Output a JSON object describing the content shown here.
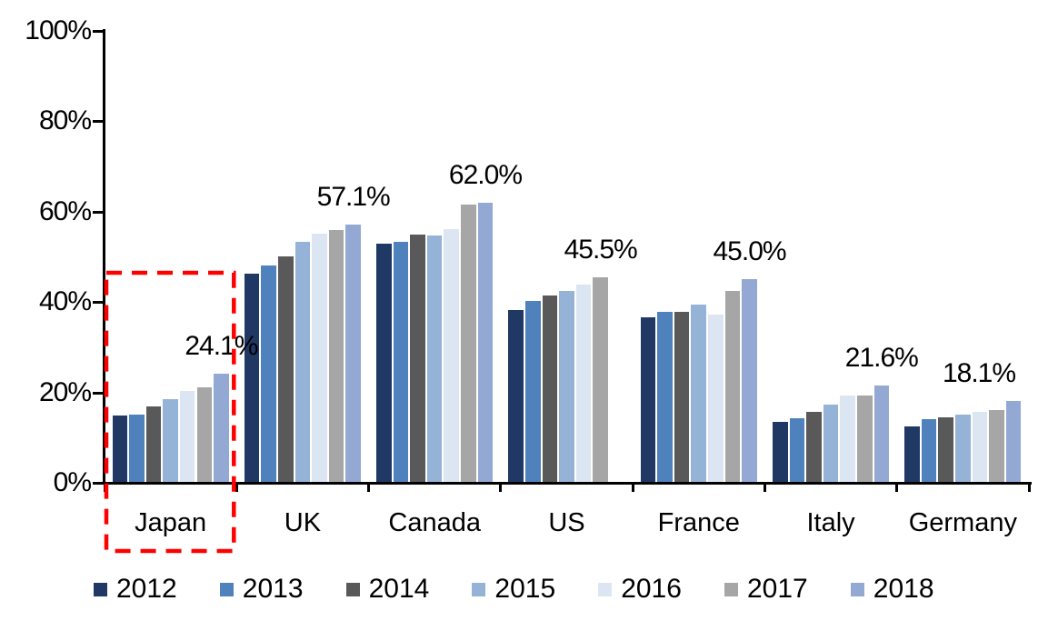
{
  "chart_data": {
    "type": "bar",
    "title": "",
    "xlabel": "",
    "ylabel": "",
    "ylim": [
      0,
      100
    ],
    "y_ticks": [
      "0%",
      "20%",
      "40%",
      "60%",
      "80%",
      "100%"
    ],
    "grid": false,
    "legend_position": "bottom",
    "categories": [
      "Japan",
      "UK",
      "Canada",
      "US",
      "France",
      "Italy",
      "Germany"
    ],
    "series": [
      {
        "name": "2012",
        "color": "#1F3864",
        "values": [
          14.9,
          46.3,
          53.0,
          38.3,
          36.6,
          13.5,
          12.5
        ]
      },
      {
        "name": "2013",
        "color": "#4F81BD",
        "values": [
          15.0,
          48.0,
          53.4,
          40.2,
          37.9,
          14.2,
          14.0
        ]
      },
      {
        "name": "2014",
        "color": "#595959",
        "values": [
          16.9,
          50.1,
          54.9,
          41.4,
          37.8,
          15.6,
          14.5
        ]
      },
      {
        "name": "2015",
        "color": "#95B3D7",
        "values": [
          18.5,
          53.4,
          54.7,
          42.5,
          39.4,
          17.3,
          15.1
        ]
      },
      {
        "name": "2016",
        "color": "#DCE6F2",
        "values": [
          20.3,
          55.1,
          56.2,
          43.8,
          37.3,
          19.3,
          15.6
        ]
      },
      {
        "name": "2017",
        "color": "#A6A6A6",
        "values": [
          21.2,
          55.9,
          61.6,
          45.5,
          42.4,
          19.4,
          16.0
        ]
      },
      {
        "name": "2018",
        "color": "#93A9D4",
        "values": [
          24.1,
          57.1,
          62.0,
          null,
          45.0,
          21.6,
          18.1
        ]
      }
    ],
    "data_labels": [
      {
        "category": "Japan",
        "text": "24.1%"
      },
      {
        "category": "UK",
        "text": "57.1%"
      },
      {
        "category": "Canada",
        "text": "62.0%"
      },
      {
        "category": "US",
        "text": "45.5%"
      },
      {
        "category": "France",
        "text": "45.0%"
      },
      {
        "category": "Italy",
        "text": "21.6%"
      },
      {
        "category": "Germany",
        "text": "18.1%"
      }
    ],
    "highlight": {
      "category": "Japan",
      "style": "dashed-box",
      "color": "#FF0000"
    },
    "axis_color": "#000000",
    "text_color": "#000000"
  }
}
